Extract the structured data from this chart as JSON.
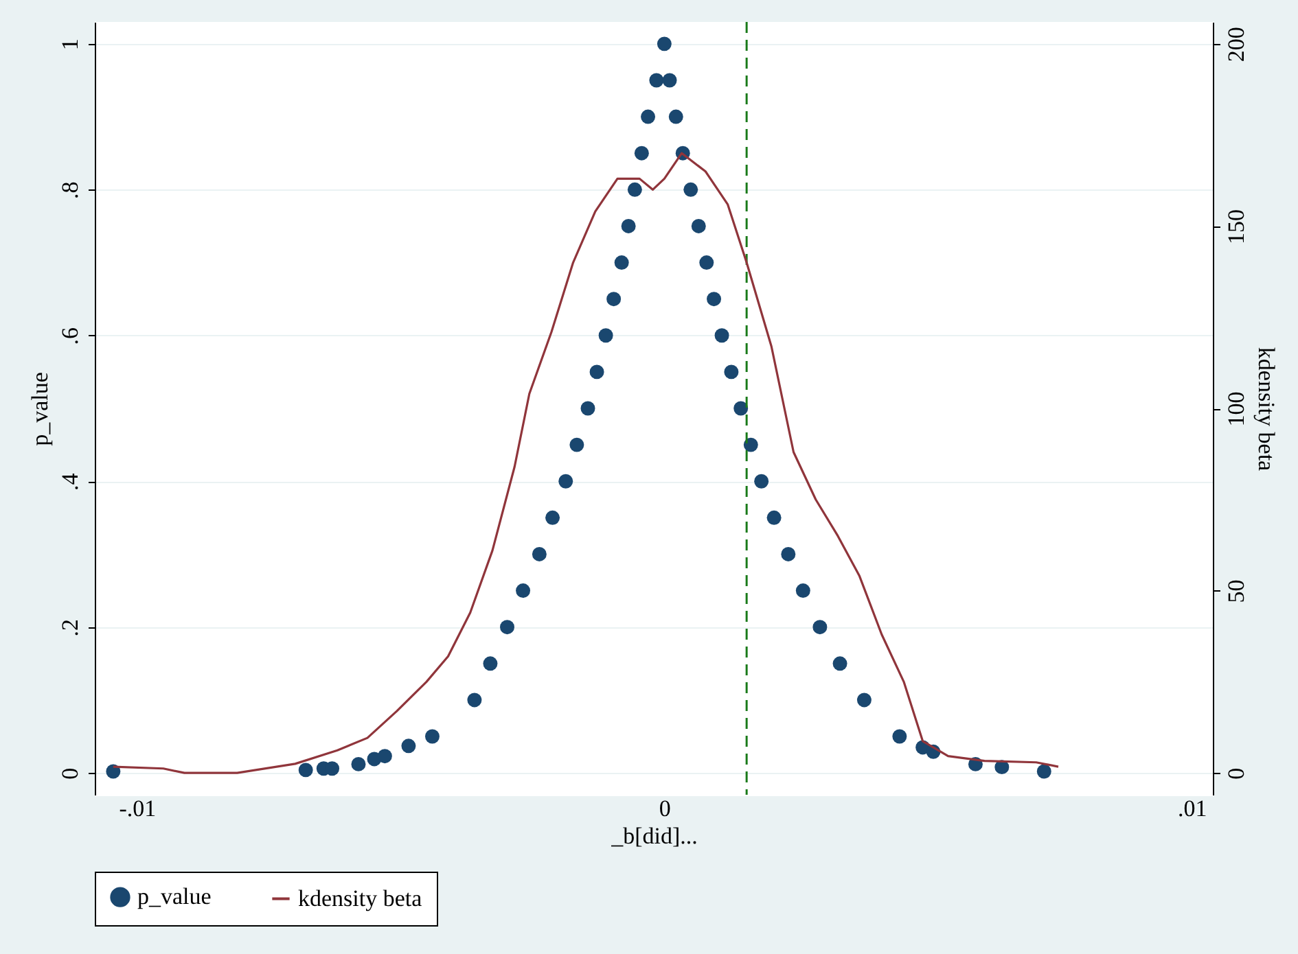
{
  "chart_data": {
    "type": "scatter",
    "xlabel": "_b[did]...",
    "ylabel": "p_value",
    "y2label": "kdensity beta",
    "xlim": [
      -0.0108,
      0.0104
    ],
    "xticks": [
      {
        "value": -0.01,
        "label": "-.01"
      },
      0,
      {
        "value": 0.01,
        "label": ".01"
      }
    ],
    "ylim": [
      -0.03,
      1.03
    ],
    "yticks": [
      0,
      {
        "value": 0.2,
        "label": ".2"
      },
      {
        "value": 0.4,
        "label": ".4"
      },
      {
        "value": 0.6,
        "label": ".6"
      },
      {
        "value": 0.8,
        "label": ".8"
      },
      1
    ],
    "y2lim": [
      -6,
      206
    ],
    "y2ticks": [
      0,
      50,
      100,
      150,
      200
    ],
    "grid": "y",
    "legend": "bottom",
    "marker": "circle",
    "ref_lines": [
      {
        "axis": "x",
        "value": 0.00156,
        "color": "#1a7a1a",
        "line_style": "dashed"
      }
    ],
    "series": [
      {
        "name": "p_value",
        "color": "#1a476f",
        "x": [
          -0.01045,
          -0.0068,
          -0.00646,
          -0.0063,
          -0.0058,
          -0.0055,
          -0.0053,
          -0.00485,
          -0.0044,
          -0.0036,
          -0.0033,
          -0.00298,
          -0.00268,
          -0.00237,
          -0.00212,
          -0.00187,
          -0.00166,
          -0.00145,
          -0.00128,
          -0.00111,
          -0.00096,
          -0.00081,
          -0.00068,
          -0.00056,
          -0.00043,
          -0.00031,
          -0.00015,
          0,
          0.0001,
          0.00022,
          0.00035,
          0.0005,
          0.00065,
          0.0008,
          0.00094,
          0.00109,
          0.00127,
          0.00145,
          0.00164,
          0.00184,
          0.00208,
          0.00235,
          0.00263,
          0.00295,
          0.00333,
          0.00379,
          0.00446,
          0.0049,
          0.0051,
          0.0059,
          0.0064,
          0.0072
        ],
        "values": [
          0.002,
          0.004,
          0.006,
          0.006,
          0.012,
          0.019,
          0.023,
          0.037,
          0.05,
          0.1,
          0.15,
          0.2,
          0.25,
          0.3,
          0.35,
          0.4,
          0.45,
          0.5,
          0.55,
          0.6,
          0.65,
          0.7,
          0.75,
          0.8,
          0.85,
          0.9,
          0.95,
          1,
          0.95,
          0.9,
          0.85,
          0.8,
          0.75,
          0.7,
          0.65,
          0.6,
          0.55,
          0.5,
          0.45,
          0.4,
          0.35,
          0.3,
          0.25,
          0.2,
          0.15,
          0.1,
          0.05,
          0.035,
          0.029,
          0.012,
          0.008,
          0.002
        ]
      },
      {
        "name": "kdensity beta",
        "type": "line",
        "marker": "none",
        "axis": "y2",
        "color": "#90353b",
        "x": [
          -0.01045,
          -0.0095,
          -0.0091,
          -0.0081,
          -0.007,
          -0.0062,
          -0.00563,
          -0.00507,
          -0.00451,
          -0.0041,
          -0.00368,
          -0.00326,
          -0.00284,
          -0.00256,
          -0.00214,
          -0.00173,
          -0.00131,
          -0.00089,
          -0.00047,
          -0.00022,
          0,
          0.00033,
          0.00078,
          0.0012,
          0.00156,
          0.00203,
          0.00245,
          0.00287,
          0.00329,
          0.0037,
          0.00412,
          0.00454,
          0.0049,
          0.00538,
          0.00607,
          0.00705,
          0.00747
        ],
        "values": [
          1.7,
          1.2,
          0,
          0,
          2.5,
          6.2,
          9.6,
          17,
          25,
          32,
          44,
          61,
          84,
          104,
          121,
          140,
          154,
          163,
          163,
          160,
          163,
          170,
          165,
          156,
          140,
          117,
          88,
          75,
          65,
          54,
          38,
          25,
          8.7,
          4.6,
          3.3,
          2.9,
          1.7
        ]
      }
    ]
  }
}
